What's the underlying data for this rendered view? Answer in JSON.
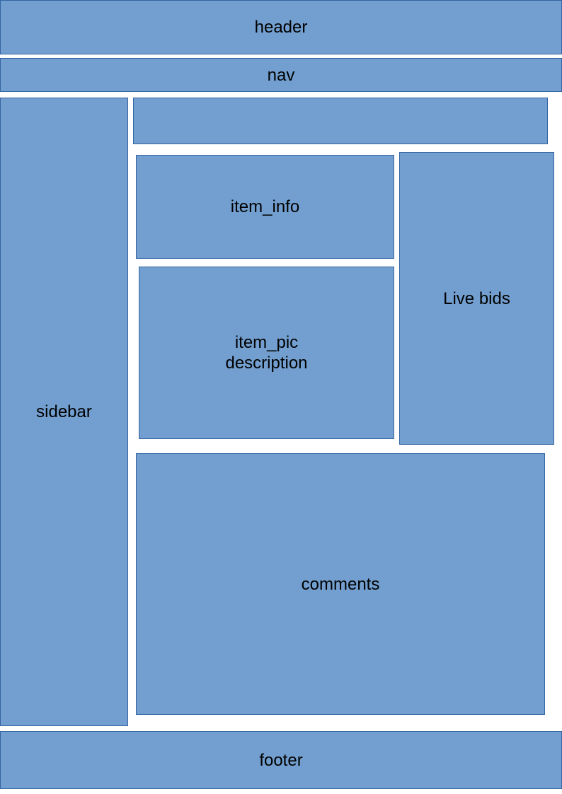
{
  "layout": {
    "header": "header",
    "nav": "nav",
    "sidebar": "sidebar",
    "top_banner": "",
    "item_info": "item_info",
    "item_pic_description": "item_pic\ndescription",
    "live_bids": "Live bids",
    "comments": "comments",
    "footer": "footer"
  },
  "colors": {
    "box_fill": "#729fcf",
    "box_border": "#3465a4",
    "text": "#000000",
    "background": "#ffffff"
  }
}
